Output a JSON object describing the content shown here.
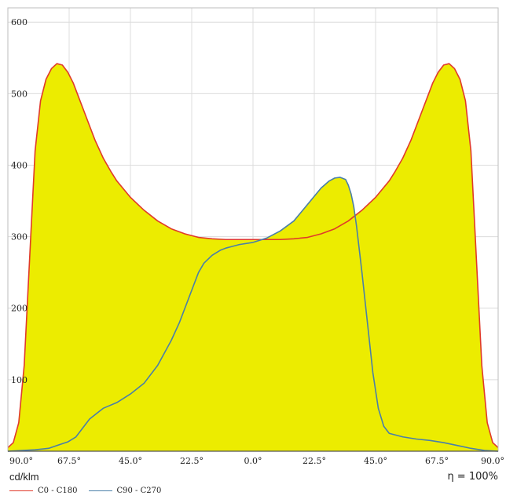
{
  "chart_data": {
    "type": "area",
    "ylabel": "cd/klm",
    "ylim": [
      0,
      620
    ],
    "yticks": [
      100,
      200,
      300,
      400,
      500,
      600
    ],
    "xlim": [
      -90,
      90
    ],
    "xtick_values": [
      -90,
      -67.5,
      -45,
      -22.5,
      0,
      22.5,
      45,
      67.5,
      90
    ],
    "xtick_labels": [
      "90.0°",
      "67.5°",
      "45.0°",
      "22.5°",
      "0.0°",
      "22.5°",
      "45.0°",
      "67.5°",
      "90.0°"
    ],
    "grid": true,
    "fill_color": "#ecec00",
    "efficiency_label": "η = 100%",
    "series": [
      {
        "name": "C0 - C180",
        "color": "#e03a2a",
        "x": [
          -90,
          -88,
          -86,
          -84,
          -82,
          -80,
          -78,
          -76,
          -74,
          -72,
          -70,
          -68,
          -66,
          -64,
          -62,
          -60,
          -58,
          -55,
          -52,
          -50,
          -45,
          -40,
          -35,
          -30,
          -25,
          -20,
          -15,
          -10,
          -5,
          0,
          5,
          10,
          15,
          20,
          25,
          30,
          35,
          40,
          45,
          50,
          52,
          55,
          58,
          60,
          62,
          64,
          66,
          68,
          70,
          72,
          74,
          76,
          78,
          80,
          82,
          84,
          86,
          88,
          90
        ],
        "y": [
          5,
          12,
          40,
          120,
          270,
          420,
          490,
          520,
          535,
          542,
          540,
          530,
          515,
          495,
          475,
          455,
          435,
          410,
          390,
          378,
          355,
          337,
          322,
          311,
          304,
          299,
          297,
          296,
          296,
          296,
          296,
          296,
          297,
          299,
          304,
          311,
          322,
          337,
          355,
          378,
          390,
          410,
          435,
          455,
          475,
          495,
          515,
          530,
          540,
          542,
          535,
          520,
          490,
          420,
          270,
          120,
          40,
          12,
          5
        ]
      },
      {
        "name": "C90 - C270",
        "color": "#4a7fa8",
        "x": [
          -90,
          -80,
          -75,
          -72,
          -68,
          -65,
          -60,
          -55,
          -50,
          -45,
          -40,
          -35,
          -30,
          -27,
          -24,
          -22,
          -20,
          -18,
          -15,
          -12,
          -10,
          -8,
          -5,
          0,
          5,
          10,
          15,
          20,
          25,
          28,
          30,
          32,
          34,
          35,
          36,
          37,
          38,
          40,
          42,
          44,
          46,
          48,
          50,
          55,
          60,
          65,
          70,
          75,
          80,
          85,
          90
        ],
        "y": [
          0,
          2,
          4,
          8,
          13,
          20,
          45,
          60,
          68,
          80,
          95,
          120,
          155,
          180,
          210,
          230,
          250,
          263,
          274,
          281,
          284,
          286,
          289,
          292,
          298,
          308,
          322,
          345,
          368,
          378,
          382,
          383,
          380,
          372,
          360,
          342,
          315,
          250,
          180,
          110,
          60,
          35,
          25,
          20,
          17,
          15,
          12,
          8,
          4,
          1,
          0
        ]
      }
    ]
  }
}
